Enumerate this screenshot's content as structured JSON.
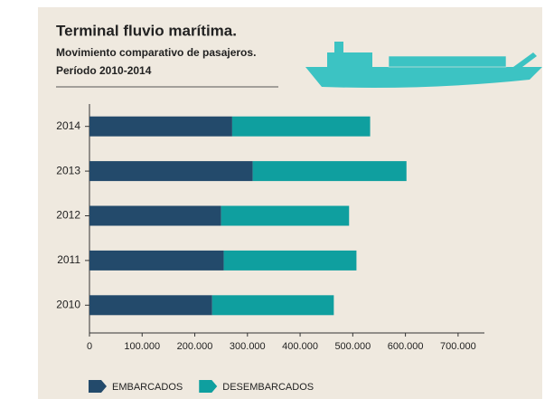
{
  "chart_data": {
    "type": "stacked-bar-horizontal",
    "title": "Terminal fluvio marítima.",
    "subtitle": [
      "Movimiento comparativo de pasajeros.",
      "Período 2010-2014"
    ],
    "categories": [
      "2014",
      "2013",
      "2012",
      "2011",
      "2010"
    ],
    "series": [
      {
        "name": "EMBARCADOS",
        "color": "#234a6b",
        "values": [
          271000,
          310000,
          250000,
          255000,
          233000
        ]
      },
      {
        "name": "DESEMBARCADOS",
        "color": "#0f9f9f",
        "values": [
          262000,
          292000,
          243000,
          252000,
          231000
        ]
      }
    ],
    "xlim": [
      0,
      750000
    ],
    "xticks": [
      0,
      {
        "value": 100000,
        "label": "100.000"
      },
      {
        "value": 200000,
        "label": "200.000"
      },
      {
        "value": 300000,
        "label": "300.000"
      },
      {
        "value": 400000,
        "label": "400.000"
      },
      {
        "value": 500000,
        "label": "500.000"
      },
      {
        "value": 600000,
        "label": "600.000"
      },
      {
        "value": 700000,
        "label": "700.000"
      }
    ],
    "legend": "bottom-left"
  }
}
